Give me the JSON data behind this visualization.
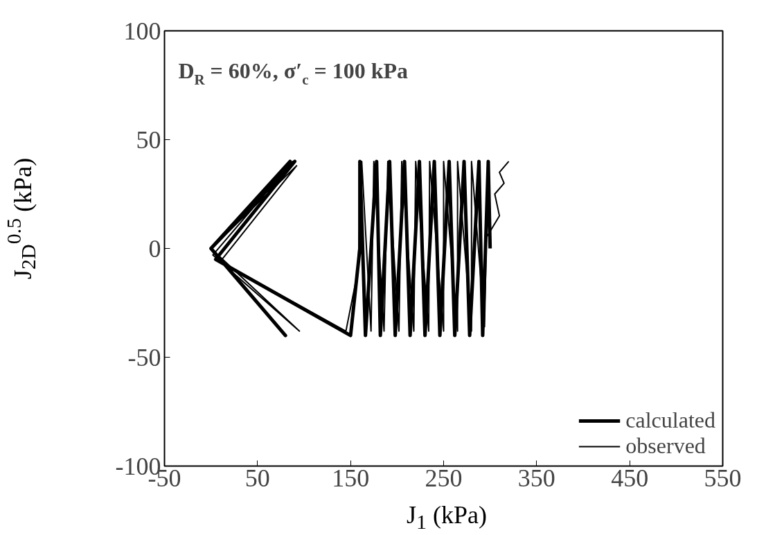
{
  "chart_data": {
    "type": "line",
    "xlabel": "J$_{1}$ (kPa)",
    "ylabel": "J$_{2D}$$^{0.5}$ (kPa)",
    "annotations": [
      "D$_{R}$ = 60%, σ′$_{c}$ = 100 kPa"
    ],
    "xlim": [
      -50,
      550
    ],
    "xticks": [
      -50,
      50,
      150,
      250,
      350,
      450,
      550
    ],
    "ylim": [
      -100,
      100
    ],
    "yticks": [
      -100,
      -50,
      0,
      50,
      100
    ],
    "grid": false,
    "legend": "bottom right",
    "marker": "none",
    "line_style": "solid",
    "series": [
      {
        "name": "calculated",
        "color": "#000000",
        "x": [
          0,
          85,
          0,
          80,
          0,
          90,
          5,
          150,
          160,
          160,
          166,
          178,
          182,
          192,
          198,
          208,
          214,
          224,
          230,
          240,
          246,
          256,
          262,
          272,
          278,
          288,
          292,
          298,
          300
        ],
        "values": [
          0,
          40,
          0,
          -40,
          0,
          40,
          -5,
          -40,
          0,
          40,
          -40,
          40,
          -40,
          40,
          -40,
          40,
          -40,
          40,
          -40,
          40,
          -40,
          40,
          -40,
          40,
          -40,
          40,
          -40,
          40,
          0
        ]
      },
      {
        "name": "observed",
        "color": "#000000",
        "x": [
          0,
          88,
          2,
          95,
          0,
          92,
          10,
          145,
          158,
          162,
          172,
          175,
          186,
          190,
          202,
          205,
          218,
          220,
          234,
          235,
          250,
          250,
          265,
          265,
          280,
          280,
          294,
          296,
          310,
          305,
          315,
          310,
          320
        ],
        "values": [
          0,
          40,
          -3,
          -38,
          0,
          38,
          -6,
          -38,
          -10,
          40,
          -38,
          40,
          -38,
          40,
          -38,
          40,
          -38,
          40,
          -38,
          40,
          -38,
          40,
          -38,
          40,
          -38,
          40,
          -36,
          5,
          15,
          25,
          30,
          35,
          40
        ]
      }
    ]
  }
}
